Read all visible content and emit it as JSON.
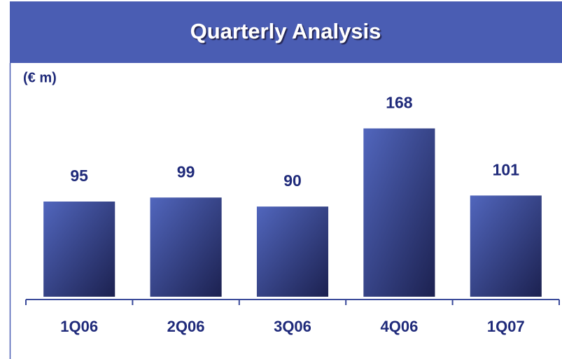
{
  "chart_data": {
    "type": "bar",
    "title": "Quarterly Analysis",
    "unit_label": "(€ m)",
    "categories": [
      "1Q06",
      "2Q06",
      "3Q06",
      "4Q06",
      "1Q07"
    ],
    "values": [
      95,
      99,
      90,
      168,
      101
    ],
    "color": "#4a5db3",
    "ylim": [
      0,
      190
    ]
  }
}
